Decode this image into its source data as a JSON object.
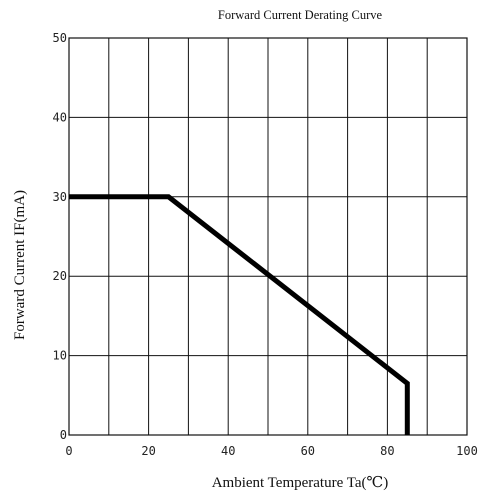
{
  "chart_data": {
    "type": "line",
    "title": "Forward Current Derating Curve",
    "xlabel": "Ambient Temperature Ta(℃)",
    "ylabel": "Forward Current IF(mA)",
    "xlim": [
      0,
      100
    ],
    "ylim": [
      0,
      50
    ],
    "x_ticks": [
      0,
      20,
      40,
      60,
      80,
      100
    ],
    "y_ticks": [
      0,
      10,
      20,
      30,
      40,
      50
    ],
    "x_grid_step": 10,
    "y_grid_step": 10,
    "grid": true,
    "series": [
      {
        "x": [
          0,
          25,
          85,
          85
        ],
        "y": [
          30,
          30,
          6.5,
          0
        ],
        "color": "#000000"
      }
    ]
  }
}
